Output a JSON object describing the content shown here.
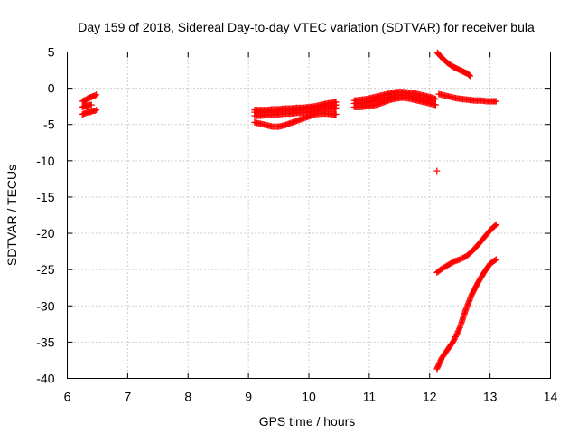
{
  "chart_data": {
    "type": "scatter",
    "title": "Day 159 of 2018, Sidereal Day-to-day VTEC variation (SDTVAR) for receiver bula",
    "xlabel": "GPS time / hours",
    "ylabel": "SDTVAR / TECUs",
    "xlim": [
      6,
      14
    ],
    "ylim": [
      -40,
      5
    ],
    "x_ticks": [
      "6",
      "7",
      "8",
      "9",
      "10",
      "11",
      "12",
      "13",
      "14"
    ],
    "y_ticks": [
      "5",
      "0",
      "-5",
      "-10",
      "-15",
      "-20",
      "-25",
      "-30",
      "-35",
      "-40"
    ],
    "grid": true,
    "marker": "+",
    "color": "#ff0000",
    "segments": [
      {
        "x": [
          6.25,
          6.28,
          6.31,
          6.34,
          6.37,
          6.4,
          6.43,
          6.46,
          6.48
        ],
        "y": [
          -1.8,
          -1.7,
          -1.6,
          -1.4,
          -1.3,
          -1.2,
          -1.1,
          -1.0,
          -0.9
        ]
      },
      {
        "x": [
          6.25,
          6.28,
          6.31,
          6.34,
          6.37,
          6.4,
          6.43,
          6.46,
          6.48
        ],
        "y": [
          -3.6,
          -3.5,
          -3.4,
          -3.3,
          -3.3,
          -3.2,
          -3.1,
          -3.1,
          -3.0
        ]
      },
      {
        "x": [
          6.25,
          6.28,
          6.31,
          6.34,
          6.37,
          6.4
        ],
        "y": [
          -2.6,
          -2.5,
          -2.4,
          -2.4,
          -2.3,
          -2.3
        ]
      },
      {
        "x": [
          9.1,
          9.2,
          9.3,
          9.4,
          9.5,
          9.6,
          9.7,
          9.8,
          9.9,
          10.0,
          10.1,
          10.2,
          10.3,
          10.4,
          10.45
        ],
        "y": [
          -3.0,
          -3.0,
          -3.0,
          -2.9,
          -2.9,
          -2.8,
          -2.8,
          -2.7,
          -2.7,
          -2.6,
          -2.5,
          -2.3,
          -2.1,
          -2.0,
          -1.9
        ]
      },
      {
        "x": [
          9.1,
          9.2,
          9.3,
          9.4,
          9.5,
          9.6,
          9.7,
          9.8,
          9.9,
          10.0,
          10.1,
          10.2,
          10.3,
          10.4,
          10.45
        ],
        "y": [
          -3.8,
          -3.8,
          -3.7,
          -3.7,
          -3.6,
          -3.5,
          -3.5,
          -3.4,
          -3.4,
          -3.3,
          -3.2,
          -3.0,
          -2.9,
          -2.8,
          -2.7
        ]
      },
      {
        "x": [
          9.1,
          9.2,
          9.3,
          9.4,
          9.5,
          9.6,
          9.7,
          9.8,
          9.9,
          10.0,
          10.1,
          10.2,
          10.3,
          10.4,
          10.45
        ],
        "y": [
          -3.3,
          -3.3,
          -3.2,
          -3.2,
          -3.1,
          -3.1,
          -3.0,
          -3.0,
          -2.9,
          -2.8,
          -2.7,
          -2.6,
          -2.5,
          -2.4,
          -2.3
        ]
      },
      {
        "x": [
          9.1,
          9.2,
          9.3,
          9.4,
          9.5,
          9.6,
          9.7,
          9.8,
          9.9,
          10.0,
          10.1,
          10.2,
          10.3,
          10.4,
          10.45
        ],
        "y": [
          -4.7,
          -4.9,
          -5.1,
          -5.3,
          -5.3,
          -5.1,
          -4.8,
          -4.5,
          -4.2,
          -3.9,
          -3.6,
          -3.5,
          -3.5,
          -3.6,
          -3.6
        ]
      },
      {
        "x": [
          10.75,
          10.85,
          10.95,
          11.05,
          11.15,
          11.25,
          11.35,
          11.45,
          11.55,
          11.65,
          11.75,
          11.85,
          11.95,
          12.05,
          12.1
        ],
        "y": [
          -1.7,
          -1.6,
          -1.5,
          -1.3,
          -1.1,
          -0.9,
          -0.7,
          -0.5,
          -0.5,
          -0.6,
          -0.7,
          -0.9,
          -1.1,
          -1.3,
          -1.5
        ]
      },
      {
        "x": [
          10.75,
          10.85,
          10.95,
          11.05,
          11.15,
          11.25,
          11.35,
          11.45,
          11.55,
          11.65,
          11.75,
          11.85,
          11.95,
          12.05,
          12.1
        ],
        "y": [
          -2.6,
          -2.6,
          -2.5,
          -2.4,
          -2.2,
          -1.9,
          -1.6,
          -1.4,
          -1.3,
          -1.4,
          -1.6,
          -1.8,
          -2.0,
          -2.2,
          -2.3
        ]
      },
      {
        "x": [
          10.75,
          10.85,
          10.95,
          11.05,
          11.15,
          11.25,
          11.35,
          11.45,
          11.55,
          11.65,
          11.75,
          11.85,
          11.95,
          12.05
        ],
        "y": [
          -2.1,
          -2.1,
          -2.0,
          -1.8,
          -1.6,
          -1.4,
          -1.2,
          -1.0,
          -0.9,
          -1.0,
          -1.2,
          -1.4,
          -1.6,
          -1.8
        ]
      },
      {
        "x": [
          12.15,
          12.25,
          12.35,
          12.45,
          12.55,
          12.65,
          12.75,
          12.85,
          12.95,
          13.05,
          13.1
        ],
        "y": [
          -0.8,
          -1.0,
          -1.2,
          -1.4,
          -1.5,
          -1.6,
          -1.7,
          -1.7,
          -1.8,
          -1.8,
          -1.8
        ]
      },
      {
        "x": [
          12.13,
          12.18,
          12.23,
          12.28,
          12.33,
          12.38,
          12.43,
          12.48,
          12.53,
          12.58,
          12.63,
          12.67
        ],
        "y": [
          4.9,
          4.4,
          4.0,
          3.6,
          3.3,
          3.0,
          2.8,
          2.6,
          2.4,
          2.2,
          2.0,
          1.7
        ]
      },
      {
        "x": [
          12.12
        ],
        "y": [
          -11.4
        ]
      },
      {
        "x": [
          12.12,
          12.2,
          12.3,
          12.4,
          12.5,
          12.6,
          12.7,
          12.8,
          12.9,
          13.0,
          13.1
        ],
        "y": [
          -25.4,
          -24.9,
          -24.4,
          -23.9,
          -23.6,
          -23.2,
          -22.5,
          -21.6,
          -20.6,
          -19.6,
          -18.8
        ]
      },
      {
        "x": [
          12.12,
          12.2,
          12.3,
          12.4,
          12.5,
          12.6,
          12.7,
          12.8,
          12.9,
          13.0,
          13.1
        ],
        "y": [
          -38.7,
          -37.2,
          -36.0,
          -34.8,
          -33.0,
          -30.5,
          -28.4,
          -26.8,
          -25.4,
          -24.2,
          -23.6
        ]
      }
    ]
  }
}
